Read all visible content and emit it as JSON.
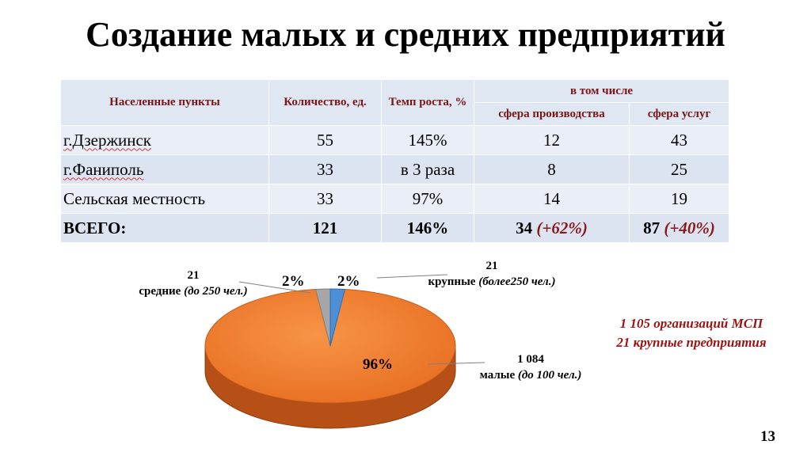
{
  "title": "Создание малых и средних предприятий",
  "table": {
    "headers": {
      "settlements": "Населенные пункты",
      "count": "Количество, ед.",
      "growth": "Темп роста, %",
      "including": "в том числе",
      "production": "сфера производства",
      "services": "сфера услуг"
    },
    "rows": [
      {
        "name": "г.Дзержинск",
        "count": "55",
        "growth": "145%",
        "production": "12",
        "services": "43"
      },
      {
        "name": "г.Фаниполь",
        "count": "33",
        "growth": "в 3 раза",
        "production": "8",
        "services": "25"
      },
      {
        "name": "Сельская местность",
        "count": "33",
        "growth": "97%",
        "production": "14",
        "services": "19"
      }
    ],
    "total": {
      "name": "ВСЕГО:",
      "count": "121",
      "growth": "146%",
      "production": "34",
      "production_pct": "(+62%)",
      "services": "87",
      "services_pct": "(+40%)"
    }
  },
  "chart_data": {
    "type": "pie",
    "categories": [
      "малые (до 100 чел.)",
      "средние (до 250 чел.)",
      "крупные (более250 чел.)"
    ],
    "values": [
      1084,
      21,
      21
    ],
    "percent_labels": [
      "96%",
      "2%",
      "2%"
    ],
    "colors": [
      "#ee7a2e",
      "#a6a6a6",
      "#4d8fd6"
    ],
    "labels": {
      "small": {
        "value": "1 084",
        "name": "малые",
        "detail": "(до 100 чел.)"
      },
      "medium": {
        "value": "21",
        "name": "средние",
        "detail": "(до 250 чел.)"
      },
      "large": {
        "value": "21",
        "name": "крупные",
        "detail": "(более250 чел.)"
      }
    }
  },
  "note": {
    "line1": "1 105 организаций МСП",
    "line2": "21 крупные предприятия"
  },
  "page_number": "13"
}
